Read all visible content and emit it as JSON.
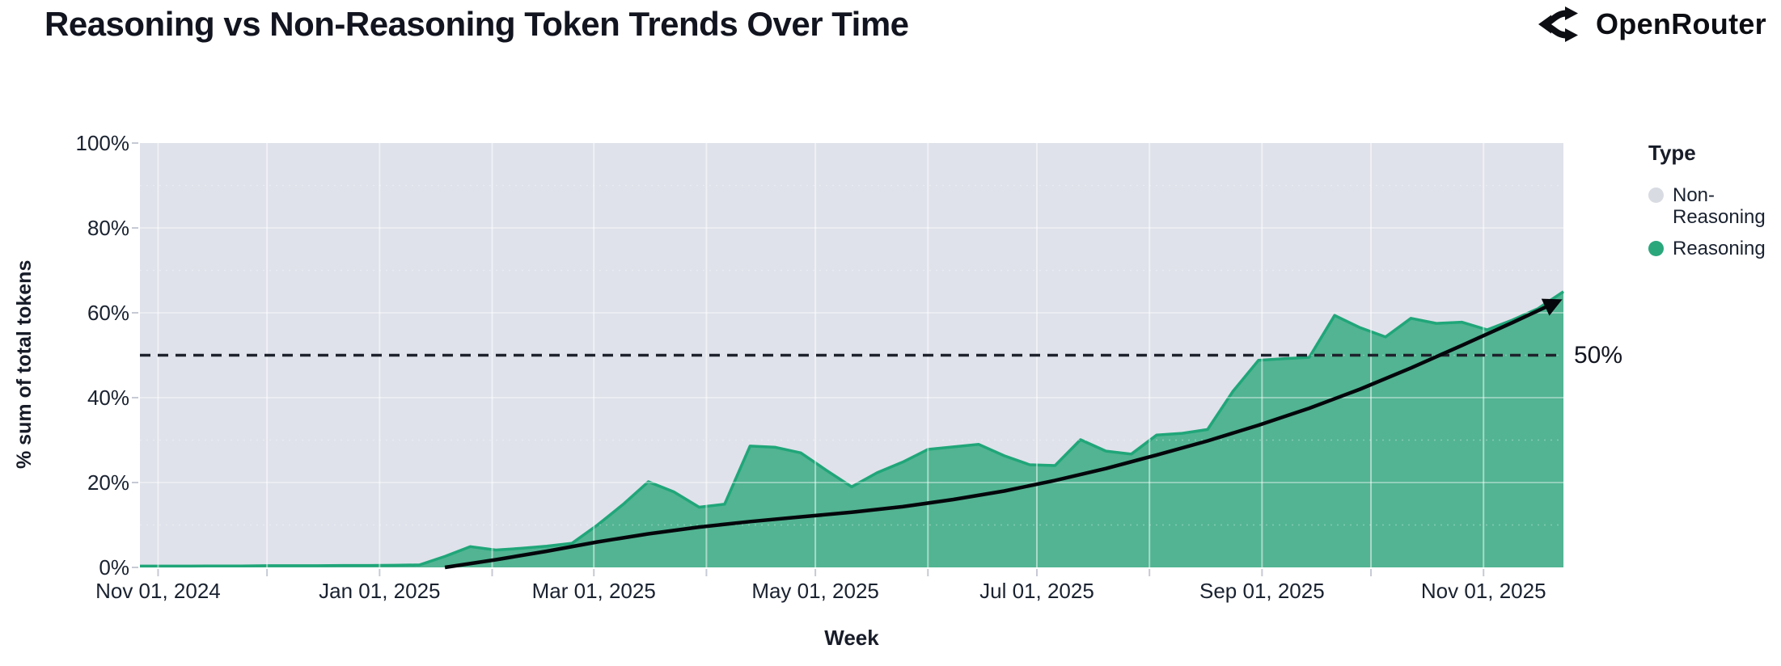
{
  "header": {
    "title": "Reasoning vs Non-Reasoning Token Trends Over Time",
    "brand": "OpenRouter"
  },
  "legend": {
    "title": "Type",
    "items": [
      {
        "label": "Non-\nReasoning",
        "color": "#d8dbe2"
      },
      {
        "label": "Reasoning",
        "color": "#2ba77c"
      }
    ]
  },
  "theme": {
    "plot_background": "#dfe2ea",
    "gridline": "#ffffff",
    "tick_mark": "#c6cad4",
    "text": "#171c28",
    "arrow": "#04060b",
    "threshold_line": "#1e222d"
  },
  "chart_data": {
    "type": "area",
    "stacking": "percent_of_total",
    "title": "Reasoning vs Non-Reasoning Token Trends Over Time",
    "x_axis": {
      "title": "Week"
    },
    "y_axis": {
      "title": "% sum of total tokens",
      "range": [
        0,
        100
      ],
      "ticks": [
        {
          "label": "0%",
          "value": 0
        },
        {
          "label": "20%",
          "value": 20
        },
        {
          "label": "40%",
          "value": 40
        },
        {
          "label": "60%",
          "value": 60
        },
        {
          "label": "80%",
          "value": 80
        },
        {
          "label": "100%",
          "value": 100
        }
      ]
    },
    "domain": {
      "start": "2024-10-27",
      "end": "2025-11-23",
      "days": 392,
      "cadence_days": 7
    },
    "month_gridlines": [
      {
        "day": 5,
        "label": "Nov 01, 2024"
      },
      {
        "day": 35
      },
      {
        "day": 66,
        "label": "Jan 01, 2025"
      },
      {
        "day": 97
      },
      {
        "day": 125,
        "label": "Mar 01, 2025"
      },
      {
        "day": 156
      },
      {
        "day": 186,
        "label": "May 01, 2025"
      },
      {
        "day": 217
      },
      {
        "day": 247,
        "label": "Jul 01, 2025"
      },
      {
        "day": 278
      },
      {
        "day": 309,
        "label": "Sep 01, 2025"
      },
      {
        "day": 339
      },
      {
        "day": 370,
        "label": "Nov 01, 2025"
      }
    ],
    "series": [
      {
        "name": "Reasoning",
        "fill_color": "#52b492",
        "line_color": "#20a679",
        "points": [
          {
            "date": "2024-10-27",
            "pct": 0.3
          },
          {
            "date": "2024-11-03",
            "pct": 0.3
          },
          {
            "date": "2024-11-10",
            "pct": 0.3
          },
          {
            "date": "2024-11-17",
            "pct": 0.35
          },
          {
            "date": "2024-11-24",
            "pct": 0.35
          },
          {
            "date": "2024-12-01",
            "pct": 0.4
          },
          {
            "date": "2024-12-08",
            "pct": 0.4
          },
          {
            "date": "2024-12-15",
            "pct": 0.4
          },
          {
            "date": "2024-12-22",
            "pct": 0.45
          },
          {
            "date": "2024-12-29",
            "pct": 0.45
          },
          {
            "date": "2025-01-05",
            "pct": 0.5
          },
          {
            "date": "2025-01-12",
            "pct": 0.6
          },
          {
            "date": "2025-01-19",
            "pct": 2.6
          },
          {
            "date": "2025-01-26",
            "pct": 4.9
          },
          {
            "date": "2025-02-02",
            "pct": 4.1
          },
          {
            "date": "2025-02-09",
            "pct": 4.5
          },
          {
            "date": "2025-02-16",
            "pct": 5.0
          },
          {
            "date": "2025-02-23",
            "pct": 5.7
          },
          {
            "date": "2025-03-02",
            "pct": 10.0
          },
          {
            "date": "2025-03-09",
            "pct": 14.8
          },
          {
            "date": "2025-03-16",
            "pct": 20.2
          },
          {
            "date": "2025-03-23",
            "pct": 17.8
          },
          {
            "date": "2025-03-30",
            "pct": 14.2
          },
          {
            "date": "2025-04-06",
            "pct": 14.9
          },
          {
            "date": "2025-04-13",
            "pct": 28.6
          },
          {
            "date": "2025-04-20",
            "pct": 28.3
          },
          {
            "date": "2025-04-27",
            "pct": 27.0
          },
          {
            "date": "2025-05-04",
            "pct": 22.9
          },
          {
            "date": "2025-05-11",
            "pct": 19.0
          },
          {
            "date": "2025-05-18",
            "pct": 22.3
          },
          {
            "date": "2025-05-25",
            "pct": 24.8
          },
          {
            "date": "2025-06-01",
            "pct": 27.8
          },
          {
            "date": "2025-06-08",
            "pct": 28.4
          },
          {
            "date": "2025-06-15",
            "pct": 29.0
          },
          {
            "date": "2025-06-22",
            "pct": 26.3
          },
          {
            "date": "2025-06-29",
            "pct": 24.2
          },
          {
            "date": "2025-07-06",
            "pct": 24.0
          },
          {
            "date": "2025-07-13",
            "pct": 30.1
          },
          {
            "date": "2025-07-20",
            "pct": 27.4
          },
          {
            "date": "2025-07-27",
            "pct": 26.7
          },
          {
            "date": "2025-08-03",
            "pct": 31.2
          },
          {
            "date": "2025-08-10",
            "pct": 31.6
          },
          {
            "date": "2025-08-17",
            "pct": 32.5
          },
          {
            "date": "2025-08-24",
            "pct": 41.5
          },
          {
            "date": "2025-08-31",
            "pct": 48.8
          },
          {
            "date": "2025-09-07",
            "pct": 49.2
          },
          {
            "date": "2025-09-14",
            "pct": 49.5
          },
          {
            "date": "2025-09-21",
            "pct": 59.4
          },
          {
            "date": "2025-09-28",
            "pct": 56.5
          },
          {
            "date": "2025-10-05",
            "pct": 54.3
          },
          {
            "date": "2025-10-12",
            "pct": 58.7
          },
          {
            "date": "2025-10-19",
            "pct": 57.5
          },
          {
            "date": "2025-10-26",
            "pct": 57.8
          },
          {
            "date": "2025-11-02",
            "pct": 56.0
          },
          {
            "date": "2025-11-09",
            "pct": 58.3
          },
          {
            "date": "2025-11-16",
            "pct": 61.0
          },
          {
            "date": "2025-11-23",
            "pct": 65.0
          }
        ]
      },
      {
        "name": "Non-Reasoning",
        "fill_color": "#dfe2ea",
        "note": "remainder to 100%"
      }
    ],
    "threshold": {
      "value": 50,
      "label": "50%",
      "style": "dashed"
    },
    "trend_arrow": {
      "color": "#04060b",
      "points": [
        {
          "day": 84,
          "pct": 0
        },
        {
          "day": 98,
          "pct": 1.8
        },
        {
          "day": 112,
          "pct": 3.8
        },
        {
          "day": 126,
          "pct": 6.0
        },
        {
          "day": 140,
          "pct": 7.9
        },
        {
          "day": 154,
          "pct": 9.5
        },
        {
          "day": 168,
          "pct": 10.8
        },
        {
          "day": 182,
          "pct": 11.9
        },
        {
          "day": 196,
          "pct": 13.0
        },
        {
          "day": 210,
          "pct": 14.3
        },
        {
          "day": 224,
          "pct": 16.0
        },
        {
          "day": 238,
          "pct": 18.0
        },
        {
          "day": 252,
          "pct": 20.5
        },
        {
          "day": 266,
          "pct": 23.3
        },
        {
          "day": 280,
          "pct": 26.5
        },
        {
          "day": 294,
          "pct": 29.8
        },
        {
          "day": 308,
          "pct": 33.5
        },
        {
          "day": 322,
          "pct": 37.5
        },
        {
          "day": 336,
          "pct": 42.0
        },
        {
          "day": 350,
          "pct": 47.0
        },
        {
          "day": 364,
          "pct": 52.3
        },
        {
          "day": 378,
          "pct": 57.7
        },
        {
          "day": 390,
          "pct": 62.5
        }
      ]
    }
  }
}
